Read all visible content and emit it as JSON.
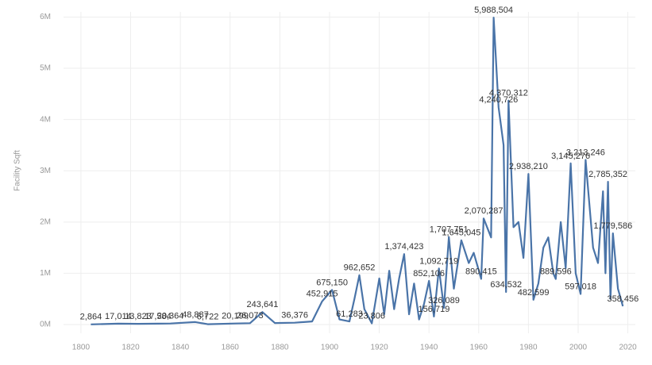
{
  "chart_data": {
    "type": "line",
    "y_label": "Facility Sqft",
    "x": [
      1804,
      1815,
      1823,
      1831,
      1836,
      1846,
      1851,
      1862,
      1868,
      1873,
      1878,
      1886,
      1893,
      1897,
      1901,
      1904,
      1908,
      1910,
      1912,
      1914,
      1917,
      1920,
      1922,
      1924,
      1926,
      1928,
      1930,
      1932,
      1934,
      1936,
      1938,
      1940,
      1942,
      1944,
      1946,
      1948,
      1950,
      1953,
      1956,
      1958,
      1961,
      1962,
      1965,
      1966,
      1968,
      1970,
      1971,
      1972,
      1974,
      1976,
      1978,
      1980,
      1982,
      1984,
      1986,
      1988,
      1990,
      1991,
      1993,
      1995,
      1997,
      1999,
      2001,
      2003,
      2006,
      2008,
      2010,
      2011,
      2012,
      2013,
      2014,
      2016,
      2018
    ],
    "series": [
      {
        "name": "Facility Sqft",
        "color": "#4a74a8",
        "values": [
          2864,
          17014,
          13823,
          17584,
          20364,
          48887,
          6722,
          20199,
          26073,
          243641,
          30000,
          36376,
          60000,
          452915,
          675150,
          100000,
          61283,
          500000,
          962652,
          300000,
          23806,
          900000,
          200000,
          1050000,
          300000,
          900000,
          1374423,
          200000,
          800000,
          100000,
          400000,
          852106,
          156719,
          1092719,
          326089,
          1707751,
          700000,
          1645045,
          1200000,
          1400000,
          890415,
          2070287,
          1700000,
          5988504,
          4240726,
          3500000,
          634532,
          4370312,
          1900000,
          2000000,
          1300000,
          2938210,
          482599,
          800000,
          1500000,
          1700000,
          1000000,
          889596,
          2000000,
          1100000,
          3145276,
          1000000,
          597018,
          3213246,
          1500000,
          1200000,
          2600000,
          1000000,
          2785352,
          500000,
          1779586,
          700000,
          358456
        ],
        "value_labels": [
          "2,864",
          "17,014",
          "13,823",
          "17,584",
          "20,364",
          "48,887",
          "6,722",
          "20,199",
          "26,073",
          "243,641",
          null,
          "36,376",
          null,
          "452,915",
          "675,150",
          null,
          "61,283",
          null,
          "962,652",
          null,
          "23,806",
          null,
          null,
          null,
          null,
          null,
          "1,374,423",
          null,
          null,
          null,
          null,
          "852,106",
          "156,719",
          "1,092,719",
          "326,089",
          "1,707,751",
          null,
          "1,645,045",
          null,
          null,
          "890,415",
          "2,070,287",
          null,
          "5,988,504",
          "4,240,726",
          null,
          "634,532",
          "4,370,312",
          null,
          null,
          null,
          "2,938,210",
          "482,599",
          null,
          null,
          null,
          null,
          "889,596",
          null,
          null,
          "3,145,276",
          null,
          "597,018",
          "3,213,246",
          null,
          null,
          null,
          null,
          "2,785,352",
          null,
          "1,779,586",
          null,
          "358,456"
        ]
      }
    ],
    "xlim": [
      1793,
      2023
    ],
    "ylim": [
      -170000,
      6100000
    ],
    "xticks": [
      1800,
      1820,
      1840,
      1860,
      1880,
      1900,
      1920,
      1940,
      1960,
      1980,
      2000,
      2020
    ],
    "yticks": [
      {
        "value": 0,
        "label": "0M"
      },
      {
        "value": 1000000,
        "label": "1M"
      },
      {
        "value": 2000000,
        "label": "2M"
      },
      {
        "value": 3000000,
        "label": "3M"
      },
      {
        "value": 4000000,
        "label": "4M"
      },
      {
        "value": 5000000,
        "label": "5M"
      },
      {
        "value": 6000000,
        "label": "6M"
      }
    ],
    "grid": true
  }
}
